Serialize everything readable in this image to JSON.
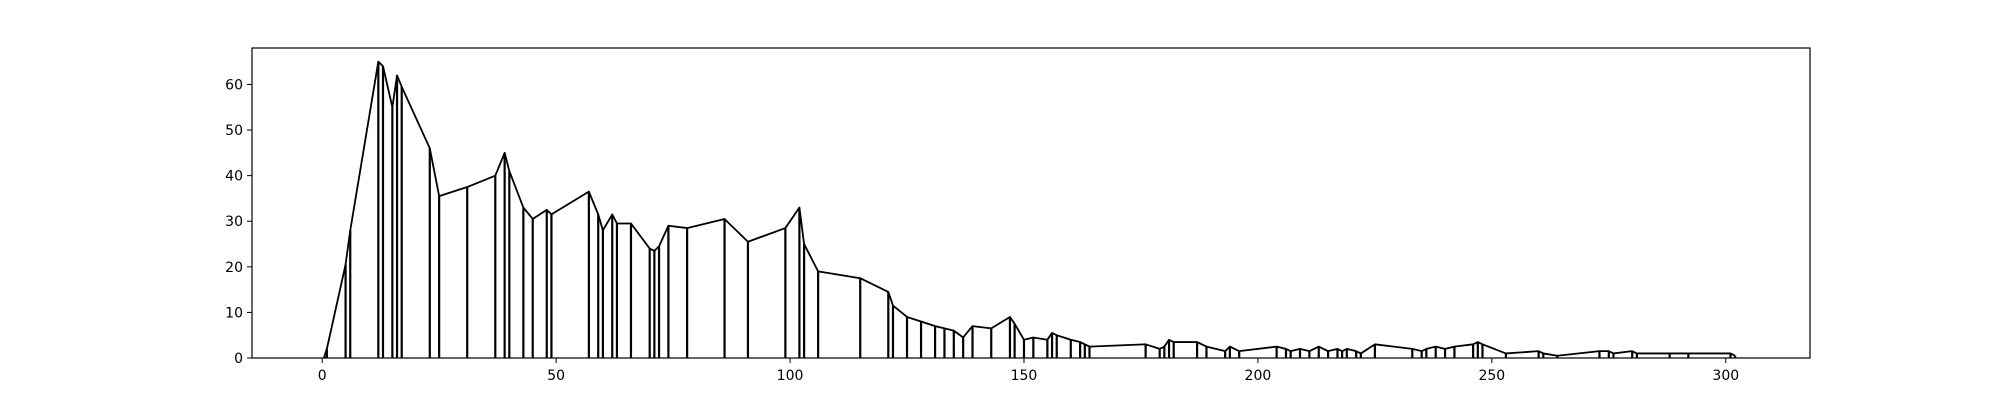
{
  "chart_data": {
    "type": "line",
    "title": "",
    "xlabel": "",
    "ylabel": "",
    "xlim": [
      -15,
      318
    ],
    "ylim": [
      0,
      68
    ],
    "grid": false,
    "x_ticks": [
      0,
      50,
      100,
      150,
      200,
      250,
      300
    ],
    "y_ticks": [
      0,
      10,
      20,
      30,
      40,
      50,
      60
    ],
    "x_tick_labels": [
      "0",
      "50",
      "100",
      "150",
      "200",
      "250",
      "300"
    ],
    "y_tick_labels": [
      "0",
      "10",
      "20",
      "30",
      "40",
      "50",
      "60"
    ],
    "line_color": "#000000",
    "stems": true,
    "series": [
      {
        "x": [
          0.5,
          1,
          5,
          6,
          12,
          13,
          15,
          16,
          17,
          23,
          25,
          31,
          37,
          39,
          40,
          43,
          45,
          48,
          49,
          57,
          59,
          60,
          62,
          63,
          66,
          70,
          71,
          72,
          74,
          78,
          86,
          91,
          99,
          102,
          103,
          106,
          115,
          121,
          122,
          125,
          128,
          131,
          133,
          135,
          137,
          139,
          143,
          147,
          148,
          150,
          152,
          155,
          156,
          157,
          160,
          162,
          163,
          164,
          176,
          179,
          180,
          181,
          182,
          187,
          189,
          193,
          194,
          196,
          204,
          206,
          207,
          209,
          211,
          213,
          215,
          217,
          218,
          219,
          221,
          222,
          225,
          233,
          235,
          236,
          238,
          240,
          242,
          246,
          247,
          248,
          253,
          260,
          261,
          264,
          273,
          275,
          276,
          280,
          281,
          288,
          292,
          301,
          302
        ],
        "y": [
          0.5,
          2,
          20.5,
          28,
          65,
          64,
          55,
          62,
          59.5,
          46,
          35.5,
          37.5,
          40,
          45,
          41,
          33,
          30.5,
          32.5,
          31.5,
          36.5,
          31.5,
          28,
          31.5,
          29.5,
          29.5,
          24,
          23.5,
          24.5,
          29,
          28.5,
          30.5,
          25.5,
          28.5,
          33,
          25,
          19,
          17.5,
          14.5,
          11.5,
          9,
          8,
          7,
          6.5,
          6,
          4.5,
          7,
          6.5,
          9,
          7.5,
          4,
          4.5,
          4,
          5.5,
          5,
          4,
          3.5,
          3,
          2.5,
          3,
          2,
          2.5,
          4,
          3.5,
          3.5,
          2.5,
          1.5,
          2.5,
          1.5,
          2.5,
          2,
          1.5,
          2,
          1.5,
          2.5,
          1.5,
          2,
          1.5,
          2,
          1.5,
          1,
          3,
          2,
          1.5,
          2,
          2.5,
          2,
          2.5,
          3,
          3.5,
          3,
          1,
          1.5,
          1,
          0.5,
          1.5,
          1.5,
          1,
          1.5,
          1,
          1,
          1,
          1,
          0.5
        ]
      }
    ]
  }
}
